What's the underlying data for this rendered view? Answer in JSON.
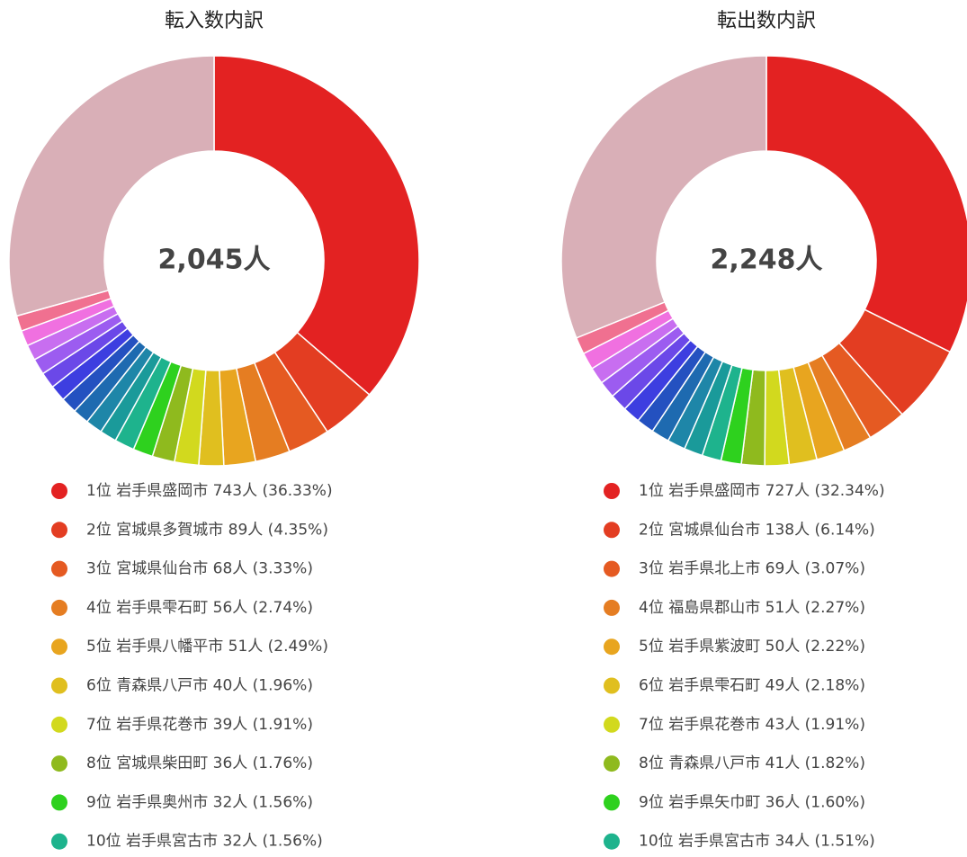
{
  "chart_data": [
    {
      "type": "donut",
      "title": "転入数内訳",
      "center_label": "2,045人",
      "categories": [
        "1位 岩手県盛岡市",
        "2位 宮城県多賀城市",
        "3位 宮城県仙台市",
        "4位 岩手県雫石町",
        "5位 岩手県八幡平市",
        "6位 青森県八戸市",
        "7位 岩手県花巻市",
        "8位 宮城県柴田町",
        "9位 岩手県奥州市",
        "10位 岩手県宮古市",
        null,
        null,
        null,
        null,
        null,
        null,
        null,
        null,
        null,
        null,
        null
      ],
      "values": [
        743,
        89,
        68,
        56,
        51,
        40,
        39,
        36,
        32,
        32,
        27,
        27,
        26,
        26,
        26,
        26,
        26,
        25,
        25,
        25,
        600
      ],
      "value_labels": [
        "743人 (36.33%)",
        "89人 (4.35%)",
        "68人 (3.33%)",
        "56人 (2.74%)",
        "51人 (2.49%)",
        "40人 (1.96%)",
        "39人 (1.91%)",
        "36人 (1.76%)",
        "32人 (1.56%)",
        "32人 (1.56%)",
        null,
        null,
        null,
        null,
        null,
        null,
        null,
        null,
        null,
        null,
        null
      ],
      "colors": [
        "#e32222",
        "#e33d22",
        "#e55a22",
        "#e57d22",
        "#e8a51f",
        "#e0bf1f",
        "#d2d91e",
        "#8fba1e",
        "#2ed11e",
        "#1eb38d",
        "#1a9a9a",
        "#1e86a8",
        "#1e6ab0",
        "#2451c0",
        "#3d3ee0",
        "#6b48e8",
        "#9c5cf0",
        "#c86ef0",
        "#f070e0",
        "#f07090",
        "#d9afb7"
      ]
    },
    {
      "type": "donut",
      "title": "転出数内訳",
      "center_label": "2,248人",
      "categories": [
        "1位 岩手県盛岡市",
        "2位 宮城県仙台市",
        "3位 岩手県北上市",
        "4位 福島県郡山市",
        "5位 岩手県紫波町",
        "6位 岩手県雫石町",
        "7位 岩手県花巻市",
        "8位 青森県八戸市",
        "9位 岩手県矢巾町",
        "10位 岩手県宮古市",
        null,
        null,
        null,
        null,
        null,
        null,
        null,
        null,
        null,
        null,
        null
      ],
      "values": [
        727,
        138,
        69,
        51,
        50,
        49,
        43,
        41,
        36,
        34,
        33,
        32,
        32,
        31,
        31,
        31,
        30,
        30,
        30,
        30,
        700
      ],
      "value_labels": [
        "727人 (32.34%)",
        "138人 (6.14%)",
        "69人 (3.07%)",
        "51人 (2.27%)",
        "50人 (2.22%)",
        "49人 (2.18%)",
        "43人 (1.91%)",
        "41人 (1.82%)",
        "36人 (1.60%)",
        "34人 (1.51%)",
        null,
        null,
        null,
        null,
        null,
        null,
        null,
        null,
        null,
        null,
        null
      ],
      "colors": [
        "#e32222",
        "#e33d22",
        "#e55a22",
        "#e57d22",
        "#e8a51f",
        "#e0bf1f",
        "#d2d91e",
        "#8fba1e",
        "#2ed11e",
        "#1eb38d",
        "#1a9a9a",
        "#1e86a8",
        "#1e6ab0",
        "#2451c0",
        "#3d3ee0",
        "#6b48e8",
        "#9c5cf0",
        "#c86ef0",
        "#f070e0",
        "#f07090",
        "#d9afb7"
      ]
    }
  ]
}
